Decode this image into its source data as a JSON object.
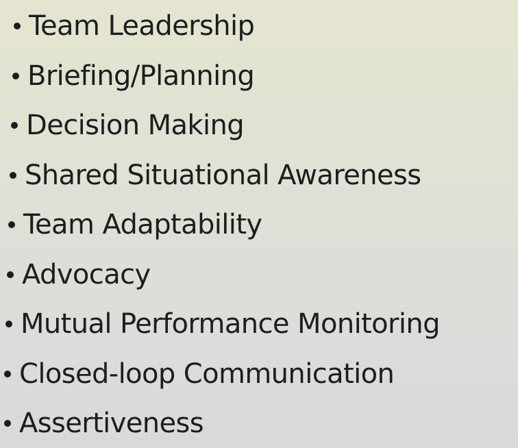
{
  "slide": {
    "bullets": [
      {
        "label": "Team Leadership"
      },
      {
        "label": "Briefing/Planning"
      },
      {
        "label": "Decision Making"
      },
      {
        "label": "Shared Situational Awareness"
      },
      {
        "label": "Team Adaptability"
      },
      {
        "label": "Advocacy"
      },
      {
        "label": "Mutual Performance Monitoring"
      },
      {
        "label": "Closed-loop Communication"
      },
      {
        "label": "Assertiveness"
      }
    ]
  }
}
